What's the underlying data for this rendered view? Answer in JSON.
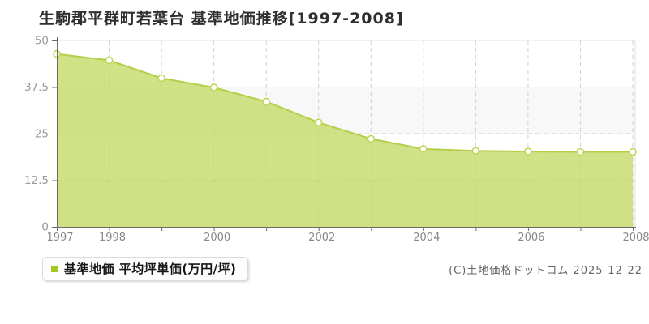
{
  "title": "生駒郡平群町若葉台 基準地価推移[1997-2008]",
  "legend": {
    "label": "基準地価 平均坪単価(万円/坪)",
    "marker_color": "#a3c820"
  },
  "copyright": "(C)土地価格ドットコム 2025-12-22",
  "chart_data": {
    "type": "area",
    "title": "生駒郡平群町若葉台 基準地価推移[1997-2008]",
    "x": [
      1997,
      1998,
      1999,
      2000,
      2001,
      2002,
      2003,
      2004,
      2005,
      2006,
      2007,
      2008
    ],
    "series": [
      {
        "name": "基準地価 平均坪単価(万円/坪)",
        "values": [
          46.4,
          44.7,
          39.9,
          37.4,
          33.6,
          28.0,
          23.6,
          20.9,
          20.4,
          20.2,
          20.1,
          20.1
        ]
      }
    ],
    "xlabel": "",
    "ylabel": "万円/坪",
    "ylim": [
      0,
      50
    ],
    "yticks": [
      0,
      12.5,
      25,
      37.5,
      50
    ],
    "ytick_labels": [
      "0",
      "12.5",
      "25",
      "37.5",
      "50"
    ],
    "labeled_years": [
      1997,
      1998,
      2000,
      2002,
      2004,
      2006,
      2008
    ],
    "grid": true,
    "legend_position": "bottom-left",
    "colors": {
      "area_fill": "rgba(197,218,103,0.8)",
      "line": "#b3cf4a",
      "marker_fill": "#ffffff",
      "marker_stroke": "#c0d85a",
      "band_alt": "#f8f8f8",
      "band_main": "#ffffff",
      "grid_dash": "#d0d0d0",
      "plot_border": "#e2e2e2",
      "axis": "#6b6b6b"
    }
  }
}
